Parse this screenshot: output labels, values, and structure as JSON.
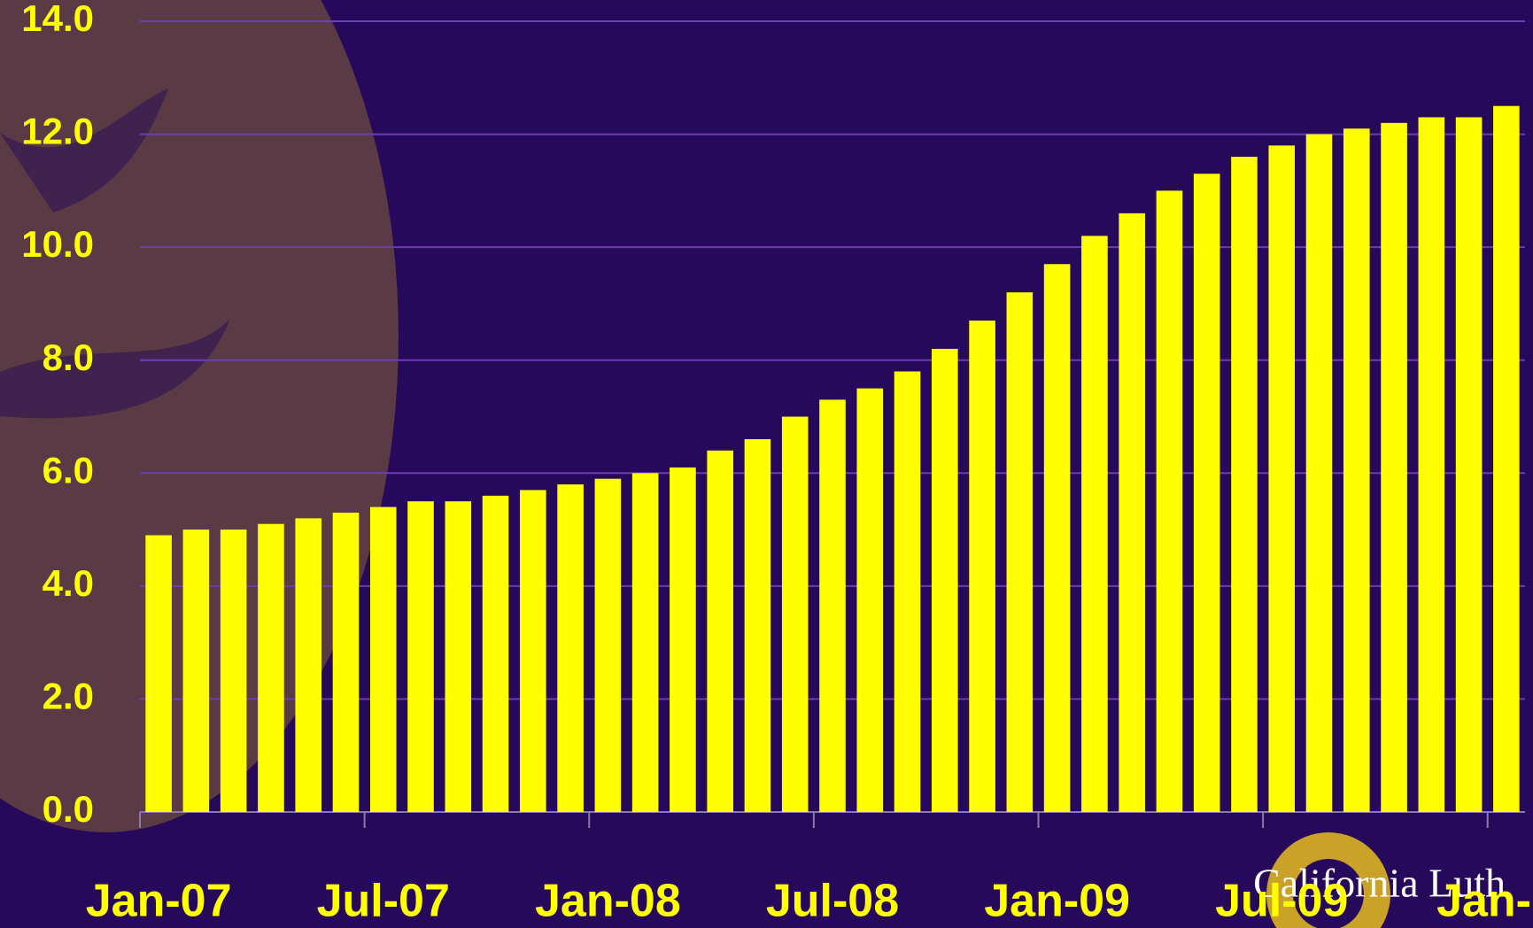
{
  "chart_data": {
    "type": "bar",
    "categories": [
      "Jan-07",
      null,
      null,
      null,
      null,
      null,
      "Jul-07",
      null,
      null,
      null,
      null,
      null,
      "Jan-08",
      null,
      null,
      null,
      null,
      null,
      "Jul-08",
      null,
      null,
      null,
      null,
      null,
      "Jan-09",
      null,
      null,
      null,
      null,
      null,
      "Jul-09",
      null,
      null,
      null,
      null,
      null,
      "Jan-"
    ],
    "values": [
      4.9,
      5.0,
      5.0,
      5.1,
      5.2,
      5.3,
      5.4,
      5.5,
      5.5,
      5.6,
      5.7,
      5.8,
      5.9,
      6.0,
      6.1,
      6.4,
      6.6,
      7.0,
      7.3,
      7.5,
      7.8,
      8.2,
      8.7,
      9.2,
      9.7,
      10.2,
      10.6,
      11.0,
      11.3,
      11.6,
      11.8,
      12.0,
      12.1,
      12.2,
      12.3,
      12.3,
      12.5
    ],
    "color": "#ffff00",
    "ylim": [
      0,
      14
    ],
    "yticks": [
      {
        "value": 0,
        "label": "0.0"
      },
      {
        "value": 2,
        "label": "2.0"
      },
      {
        "value": 4,
        "label": "4.0"
      },
      {
        "value": 6,
        "label": "6.0"
      },
      {
        "value": 8,
        "label": "8.0"
      },
      {
        "value": 10,
        "label": "10.0"
      },
      {
        "value": 12,
        "label": "12.0"
      },
      {
        "value": 14,
        "label": "14.0"
      }
    ],
    "grid": true
  },
  "logo_text": "California Luth"
}
